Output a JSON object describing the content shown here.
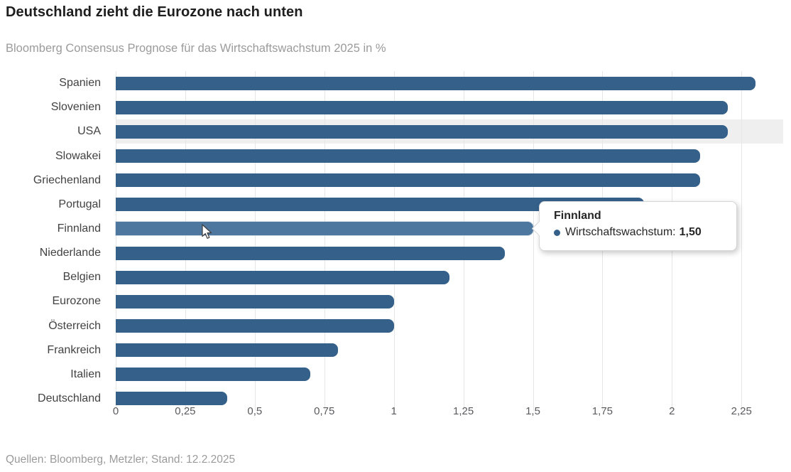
{
  "header": {
    "title": "Deutschland zieht die Eurozone nach unten",
    "subtitle": "Bloomberg Consensus Prognose für das Wirtschaftswachstum 2025 in %"
  },
  "footer": {
    "source": "Quellen: Bloomberg, Metzler; Stand: 12.2.2025"
  },
  "tooltip": {
    "title": "Finnland",
    "series_label": "Wirtschaftswachstum:",
    "value": "1,50"
  },
  "chart_data": {
    "type": "bar",
    "orientation": "horizontal",
    "title": "Deutschland zieht die Eurozone nach unten",
    "subtitle": "Bloomberg Consensus Prognose für das Wirtschaftswachstum 2025 in %",
    "categories": [
      "Spanien",
      "Slovenien",
      "USA",
      "Slowakei",
      "Griechenland",
      "Portugal",
      "Finnland",
      "Niederlande",
      "Belgien",
      "Eurozone",
      "Österreich",
      "Frankreich",
      "Italien",
      "Deutschland"
    ],
    "values": [
      2.3,
      2.2,
      2.2,
      2.1,
      2.1,
      1.9,
      1.5,
      1.4,
      1.2,
      1.0,
      1.0,
      0.8,
      0.7,
      0.4
    ],
    "series_name": "Wirtschaftswachstum",
    "xlabel": "",
    "ylabel": "",
    "xlim": [
      0,
      2.4
    ],
    "x_tick_values": [
      0,
      0.25,
      0.5,
      0.75,
      1,
      1.25,
      1.5,
      1.75,
      2,
      2.25
    ],
    "x_tick_labels": [
      "0",
      "0,25",
      "0,5",
      "0,75",
      "1",
      "1,25",
      "1,5",
      "1,75",
      "2",
      "2,25"
    ],
    "grid": "vertical-only",
    "legend": "none",
    "hovered_category": "Finnland",
    "hovered_value_label": "1,50",
    "plotband_category": "USA",
    "colors": {
      "bar": "#35608a",
      "bar_hover": "#4d779f",
      "plotband": "#efefef",
      "gridline": "#e6e6e6",
      "title_text": "#1e1e1e",
      "muted_text": "#9b9b9b",
      "label_text": "#424242",
      "tick_text": "#5a5a5e"
    },
    "source": "Quellen: Bloomberg, Metzler; Stand: 12.2.2025"
  }
}
